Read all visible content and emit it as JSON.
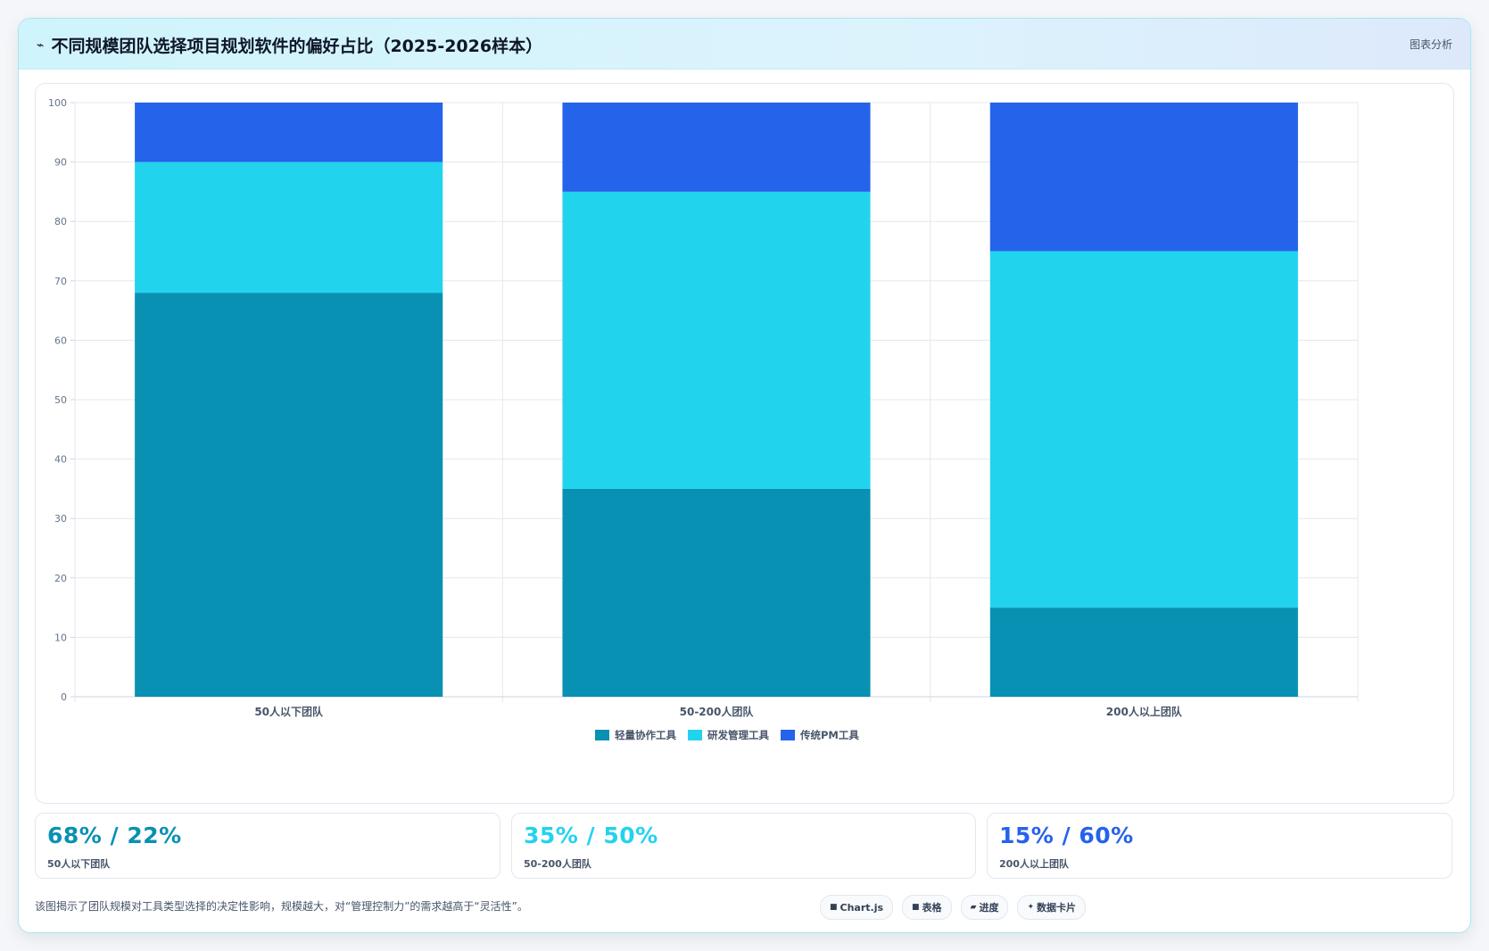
{
  "header": {
    "icon": "chart-icon",
    "title": "不同规模团队选择项目规划软件的偏好占比（2025-2026样本）",
    "tag": "图表分析"
  },
  "chart_data": {
    "type": "bar",
    "stacked": true,
    "categories": [
      "50人以下团队",
      "50-200人团队",
      "200人以上团队"
    ],
    "series": [
      {
        "name": "轻量协作工具",
        "values": [
          68,
          35,
          15
        ],
        "color": "#0891b2"
      },
      {
        "name": "研发管理工具",
        "values": [
          22,
          50,
          60
        ],
        "color": "#22d3ee"
      },
      {
        "name": "传统PM工具",
        "values": [
          10,
          15,
          25
        ],
        "color": "#2563eb"
      }
    ],
    "ylim": [
      0,
      100
    ],
    "yticks": [
      0,
      10,
      20,
      30,
      40,
      50,
      60,
      70,
      80,
      90,
      100
    ],
    "grid": true,
    "legend": "bottom-center"
  },
  "kpis": [
    {
      "value": "68% / 22%",
      "label": "50人以下团队",
      "color": "#0891b2"
    },
    {
      "value": "35% / 50%",
      "label": "50-200人团队",
      "color": "#22d3ee"
    },
    {
      "value": "15% / 60%",
      "label": "200人以上团队",
      "color": "#2563eb"
    }
  ],
  "footer": {
    "note": "该图揭示了团队规模对工具类型选择的决定性影响，规模越大，对“管理控制力”的需求越高于“灵活性”。",
    "chips": [
      {
        "icon": "■",
        "label": "Chart.js"
      },
      {
        "icon": "■",
        "label": "表格"
      },
      {
        "icon": "▰",
        "label": "进度"
      },
      {
        "icon": "✦",
        "label": "数据卡片"
      }
    ]
  }
}
